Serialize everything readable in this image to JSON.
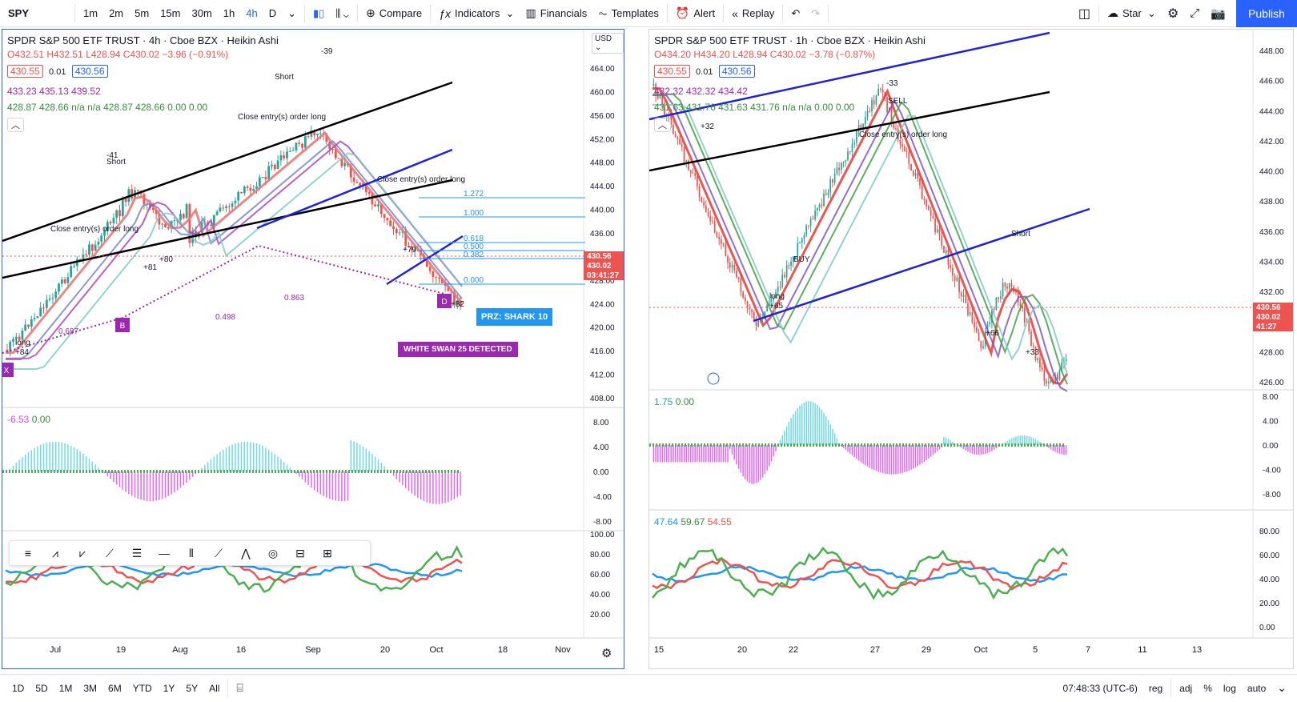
{
  "toolbar": {
    "symbol": "SPY",
    "intervals": [
      "1m",
      "2m",
      "5m",
      "15m",
      "30m",
      "1h",
      "4h",
      "D"
    ],
    "active_interval": "4h",
    "compare": "Compare",
    "indicators": "Indicators",
    "financials": "Financials",
    "templates": "Templates",
    "alert": "Alert",
    "replay": "Replay",
    "star": "Star",
    "publish": "Publish"
  },
  "left_chart": {
    "title": "SPDR S&P 500 ETF TRUST · 4h · Cboe BZX · Heikin Ashi",
    "ohlc": "O432.51 H432.51 L428.94 C430.02 −3.96 (−0.91%)",
    "price_badge_red": "430.55",
    "price_badge_step": "0.01",
    "price_badge_blue": "430.56",
    "line3": "433.23 435.13 439.52",
    "line4": "428.87 428.66 n/a n/a 428.87 428.66 0.00 0.00",
    "currency": "USD",
    "price_axis": [
      "464.00",
      "460.00",
      "456.00",
      "452.00",
      "448.00",
      "444.00",
      "440.00",
      "436.00",
      "432.00",
      "428.00",
      "424.00",
      "420.00",
      "416.00",
      "412.00",
      "408.00"
    ],
    "last_price_labels": [
      "430.56",
      "430.02",
      "03:41:27"
    ],
    "fib_levels": [
      "1.272",
      "1.000",
      "0.618",
      "0.500",
      "0.382",
      "0.000"
    ],
    "harmonic_ratios": [
      "0.863",
      "0.498",
      "0.687"
    ],
    "prz_label": "PRZ: SHARK 10",
    "white_swan_label": "WHITE SWAN 25 DETECTED",
    "osc_legend": [
      "-6.53",
      "0.00"
    ],
    "osc_axis": [
      "8.00",
      "4.00",
      "0.00",
      "-4.00",
      "-8.00"
    ],
    "rsi_axis": [
      "100.00",
      "80.00",
      "60.00",
      "40.00",
      "20.00"
    ],
    "time_axis": [
      "Jul",
      "19",
      "Aug",
      "16",
      "Sep",
      "20",
      "Oct",
      "18",
      "Nov"
    ],
    "signals": [
      "Short",
      "Close entry(s) order long",
      "long",
      "+84",
      "+81",
      "+80",
      "+79",
      "+82",
      "-40",
      "-41",
      "-42",
      "-39"
    ]
  },
  "right_chart": {
    "title": "SPDR S&P 500 ETF TRUST · 1h · Cboe BZX · Heikin Ashi",
    "ohlc": "O434.20 H434.20 L428.94 C430.02 −3.78 (−0.87%)",
    "price_badge_red": "430.55",
    "price_badge_step": "0.01",
    "price_badge_blue": "430.56",
    "line3": "432.32 432.32 434.42",
    "line4": "431.63 431.76 431.63 431.76 n/a n/a 0.00 0.00",
    "price_axis": [
      "448.00",
      "446.00",
      "444.00",
      "442.00",
      "440.00",
      "438.00",
      "436.00",
      "434.00",
      "432.00",
      "430.00",
      "428.00",
      "426.00"
    ],
    "last_price_labels": [
      "430.56",
      "430.02",
      "41:27"
    ],
    "osc_legend": [
      "1.75",
      "0.00"
    ],
    "osc_axis": [
      "8.00",
      "4.00",
      "0.00",
      "-4.00",
      "-8.00"
    ],
    "rsi_legend": [
      "47.64",
      "59.67",
      "54.55"
    ],
    "rsi_axis": [
      "80.00",
      "60.00",
      "40.00",
      "20.00",
      "0.00"
    ],
    "time_axis": [
      "15",
      "20",
      "22",
      "27",
      "29",
      "Oct",
      "5",
      "7",
      "11",
      "13"
    ],
    "signals": [
      "Short",
      "SELL",
      "BUY",
      "long",
      "+65",
      "+66",
      "+33",
      "+32",
      "-33",
      "Close entry(s) order long"
    ]
  },
  "bottom": {
    "ranges": [
      "1D",
      "5D",
      "1M",
      "3M",
      "6M",
      "YTD",
      "1Y",
      "5Y",
      "All"
    ],
    "time": "07:48:33 (UTC-6)",
    "options": [
      "reg",
      "adj",
      "%",
      "log",
      "auto"
    ]
  },
  "colors": {
    "accent": "#2962ff",
    "bull": "#26a69a",
    "bear": "#ef5350",
    "purple": "#9c27b0"
  }
}
